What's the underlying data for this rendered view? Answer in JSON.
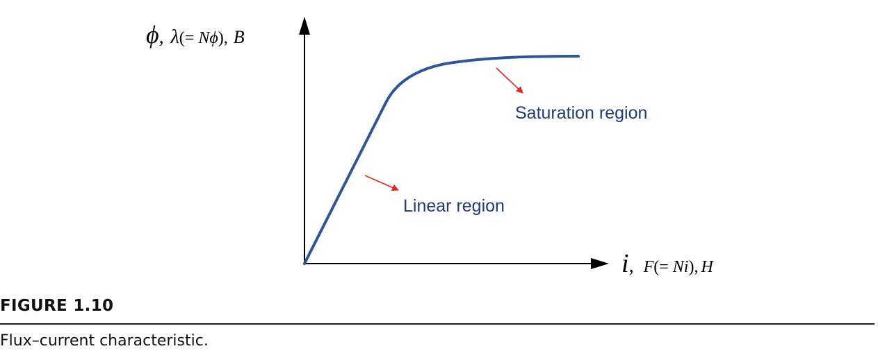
{
  "diagram": {
    "y_axis_label": {
      "phi": "ϕ",
      "sep1": ",",
      "lambda": "λ",
      "paren_open": "(= ",
      "n": "N",
      "phi2": "ϕ",
      "paren_close": "),",
      "b": "B"
    },
    "x_axis_label": {
      "i": "i",
      "sep1": ",",
      "f": "F",
      "paren_open": "(= ",
      "ni": "Ni",
      "paren_close": ")",
      "sep2": ",",
      "h": "H"
    },
    "curve_color": "#2e5596",
    "arrow_color": "#e8231d",
    "annotations": {
      "saturation": "Saturation region",
      "linear": "Linear region"
    }
  },
  "figure": {
    "number": "FIGURE 1.10",
    "caption": "Flux–current characteristic."
  }
}
